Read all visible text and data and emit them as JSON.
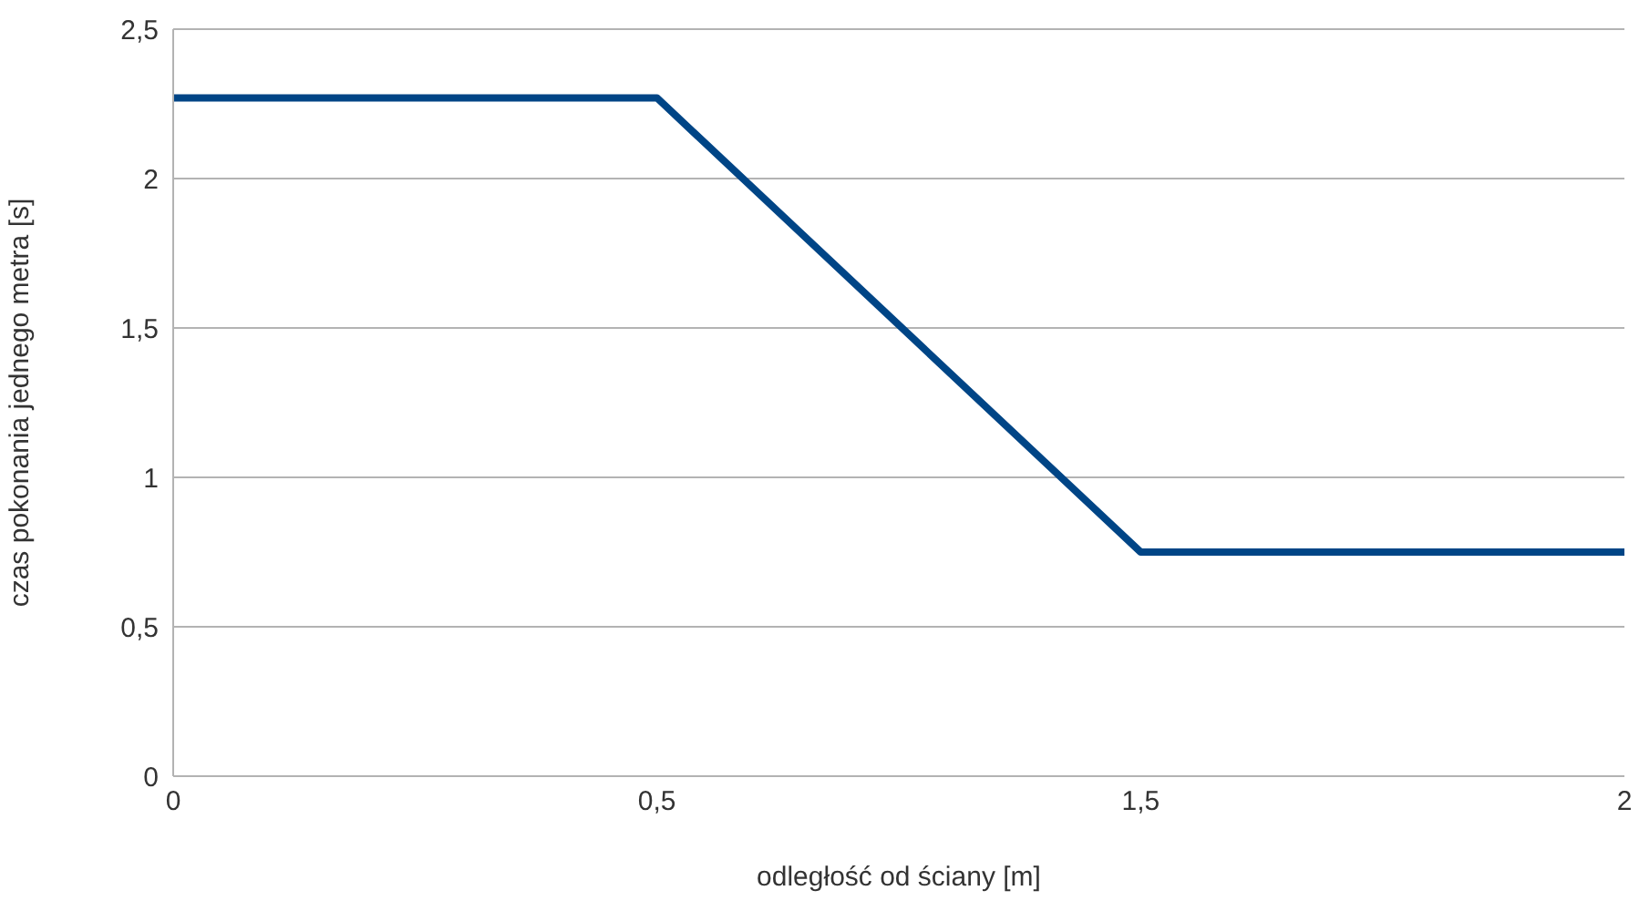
{
  "chart_data": {
    "type": "line",
    "xlabel": "odległość od ściany [m]",
    "ylabel": "czas pokonania jednego metra [s]",
    "categories": [
      "0",
      "0,5",
      "1,5",
      "2"
    ],
    "series": [
      {
        "color": "#004586",
        "values": [
          2.27,
          2.27,
          0.75,
          0.75
        ]
      }
    ],
    "ylim": [
      0,
      2.5
    ],
    "yticks": [
      0,
      {
        "value": 0.5,
        "label": "0,5"
      },
      1,
      {
        "value": 1.5,
        "label": "1,5"
      },
      2,
      {
        "value": 2.5,
        "label": "2,5"
      }
    ],
    "grid": "y",
    "legend": false,
    "marker": "none",
    "line_style": "solid"
  }
}
